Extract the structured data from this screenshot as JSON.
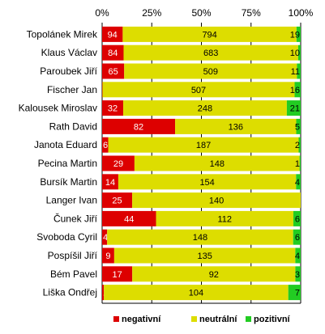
{
  "chart_data": {
    "type": "bar",
    "orientation": "horizontal",
    "stacked": "percent",
    "title": "",
    "xlabel": "",
    "ylabel": "",
    "xlim": [
      0,
      100
    ],
    "x_ticks": [
      "0%",
      "25%",
      "50%",
      "75%",
      "100%"
    ],
    "grid": "vertical",
    "legend_position": "bottom",
    "categories": [
      "Topolánek Mirek",
      "Klaus Václav",
      "Paroubek Jiří",
      "Fischer Jan",
      "Kalousek Miroslav",
      "Rath David",
      "Janota Eduard",
      "Pecina Martin",
      "Bursík Martin",
      "Langer Ivan",
      "Čunek Jiří",
      "Svoboda Cyril",
      "Pospíšil Jiří",
      "Bém Pavel",
      "Liška Ondřej"
    ],
    "series": [
      {
        "name": "negativní",
        "color": "#dd0000",
        "label_color": "#ffffff",
        "values": [
          94,
          84,
          65,
          1,
          32,
          82,
          6,
          29,
          14,
          25,
          44,
          4,
          9,
          17,
          1
        ]
      },
      {
        "name": "neutrální",
        "color": "#dddd00",
        "label_color": "#000000",
        "values": [
          794,
          683,
          509,
          507,
          248,
          136,
          187,
          148,
          154,
          140,
          112,
          148,
          135,
          92,
          104
        ]
      },
      {
        "name": "pozitivní",
        "color": "#22cc22",
        "label_color": "#000000",
        "values": [
          19,
          10,
          11,
          16,
          21,
          5,
          2,
          1,
          4,
          0,
          6,
          6,
          4,
          3,
          7
        ]
      }
    ],
    "data_labels": [
      [
        "94",
        "794",
        "19"
      ],
      [
        "84",
        "683",
        "10"
      ],
      [
        "65",
        "509",
        "11"
      ],
      [
        "1",
        "507",
        "16"
      ],
      [
        "32",
        "248",
        "21"
      ],
      [
        "82",
        "136",
        "5"
      ],
      [
        "6",
        "187",
        "2"
      ],
      [
        "29",
        "148",
        "1"
      ],
      [
        "14",
        "154",
        "4"
      ],
      [
        "25",
        "140",
        ""
      ],
      [
        "44",
        "112",
        "6"
      ],
      [
        "4",
        "148",
        "6"
      ],
      [
        "9",
        "135",
        "4"
      ],
      [
        "17",
        "92",
        "3"
      ],
      [
        "1",
        "104",
        "7"
      ]
    ]
  }
}
